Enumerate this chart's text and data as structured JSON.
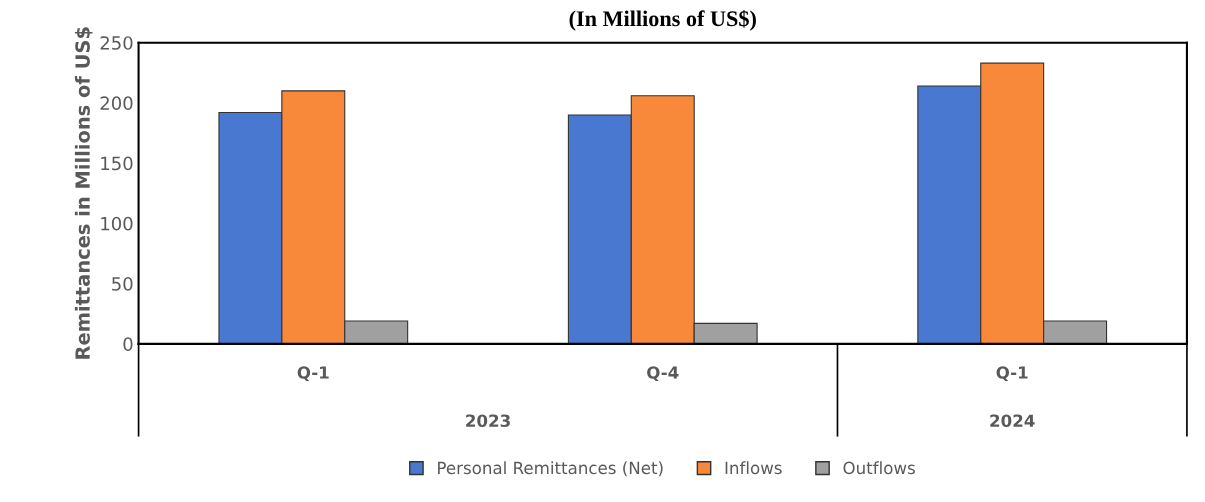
{
  "chart_data": {
    "type": "bar",
    "title": "(In Millions of US$)",
    "ylabel": "Remittances in Millions of US$",
    "categories": [
      "Q-1",
      "Q-4",
      "Q-1"
    ],
    "series": [
      {
        "name": "Personal Remittances (Net)",
        "color": "#4878cf",
        "values": [
          192,
          190,
          214
        ]
      },
      {
        "name": "Inflows",
        "color": "#f8883a",
        "values": [
          210,
          206,
          233
        ]
      },
      {
        "name": "Outflows",
        "color": "#a0a0a0",
        "values": [
          19,
          17,
          19
        ]
      }
    ],
    "annotations": [
      "2023",
      "2024"
    ],
    "ylim": [
      0,
      250
    ],
    "yticks": [
      0,
      50,
      100,
      150,
      200,
      250
    ],
    "grid": false,
    "legend": "bottom"
  }
}
